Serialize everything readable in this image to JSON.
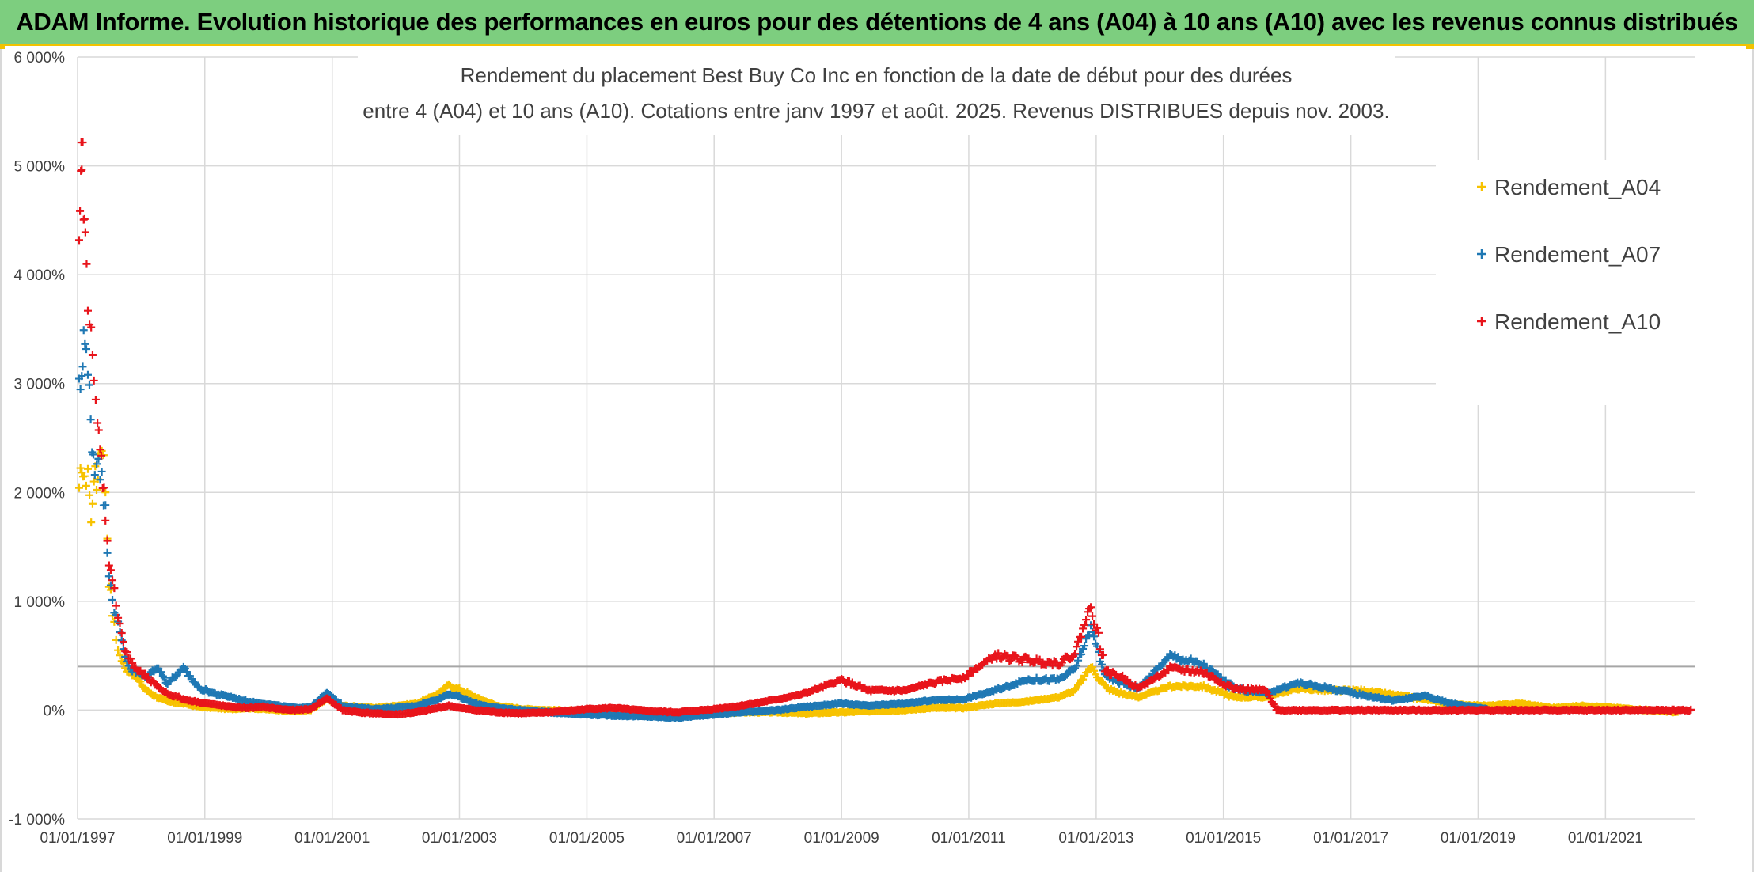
{
  "banner": {
    "title": "ADAM Informe. Evolution historique des performances en euros pour des détentions de 4 ans (A04) à 10 ans (A10) avec les revenus connus distribués"
  },
  "chart_data": {
    "type": "scatter",
    "title_lines": [
      "Rendement du placement Best Buy Co Inc en fonction de la date de début pour des durées",
      "entre 4 (A04) et 10 ans (A10). Cotations entre janv 1997 et août. 2025. Revenus DISTRIBUES depuis nov. 2003."
    ],
    "xlabel": "",
    "ylabel": "",
    "x_tick_labels": [
      "01/01/1997",
      "01/01/1999",
      "01/01/2001",
      "01/01/2003",
      "01/01/2005",
      "01/01/2007",
      "01/01/2009",
      "01/01/2011",
      "01/01/2013",
      "01/01/2015",
      "01/01/2017",
      "01/01/2019",
      "01/01/2021"
    ],
    "y_ticks": [
      -1000,
      0,
      1000,
      2000,
      3000,
      4000,
      5000,
      6000
    ],
    "y_tick_labels": [
      "-1 000%",
      "0%",
      "1 000%",
      "2 000%",
      "3 000%",
      "4 000%",
      "5 000%",
      "6 000%"
    ],
    "xlim": [
      "1997-01-01",
      "2022-06-01"
    ],
    "ylim": [
      -1000,
      6000
    ],
    "reference_line_y": 400,
    "grid": true,
    "legend_position": "top-right",
    "marker": "+",
    "series": [
      {
        "name": "Rendement_A04",
        "color": "#f7c200",
        "points": [
          [
            "1997-01-10",
            1950
          ],
          [
            "1997-01-25",
            2300
          ],
          [
            "1997-02-10",
            2050
          ],
          [
            "1997-03-01",
            2250
          ],
          [
            "1997-03-20",
            1700
          ],
          [
            "1997-04-05",
            2200
          ],
          [
            "1997-04-20",
            2050
          ],
          [
            "1997-05-05",
            2350
          ],
          [
            "1997-05-20",
            2500
          ],
          [
            "1997-06-10",
            2050
          ],
          [
            "1997-07-01",
            1200
          ],
          [
            "1997-07-20",
            900
          ],
          [
            "1997-08-10",
            650
          ],
          [
            "1997-09-01",
            500
          ],
          [
            "1997-10-01",
            380
          ],
          [
            "1997-11-01",
            360
          ],
          [
            "1997-12-01",
            300
          ],
          [
            "1998-02-01",
            180
          ],
          [
            "1998-04-01",
            120
          ],
          [
            "1998-06-01",
            80
          ],
          [
            "1998-09-01",
            60
          ],
          [
            "1998-12-01",
            30
          ],
          [
            "1999-03-01",
            20
          ],
          [
            "1999-06-01",
            10
          ],
          [
            "1999-09-01",
            20
          ],
          [
            "1999-12-01",
            10
          ],
          [
            "2000-03-01",
            0
          ],
          [
            "2000-06-01",
            -10
          ],
          [
            "2000-09-01",
            0
          ],
          [
            "2000-12-01",
            100
          ],
          [
            "2001-03-01",
            40
          ],
          [
            "2001-06-01",
            30
          ],
          [
            "2001-09-01",
            20
          ],
          [
            "2002-01-01",
            40
          ],
          [
            "2002-05-01",
            60
          ],
          [
            "2002-09-01",
            150
          ],
          [
            "2002-11-01",
            230
          ],
          [
            "2003-01-01",
            190
          ],
          [
            "2003-04-01",
            120
          ],
          [
            "2003-08-01",
            40
          ],
          [
            "2004-01-01",
            10
          ],
          [
            "2004-06-01",
            0
          ],
          [
            "2005-01-01",
            -10
          ],
          [
            "2005-06-01",
            -20
          ],
          [
            "2006-01-01",
            -30
          ],
          [
            "2006-06-01",
            -40
          ],
          [
            "2007-01-01",
            -30
          ],
          [
            "2007-06-01",
            -20
          ],
          [
            "2008-01-01",
            -20
          ],
          [
            "2008-06-01",
            -30
          ],
          [
            "2009-01-01",
            -20
          ],
          [
            "2009-06-01",
            -10
          ],
          [
            "2010-01-01",
            0
          ],
          [
            "2010-06-01",
            20
          ],
          [
            "2010-12-01",
            20
          ],
          [
            "2011-06-01",
            60
          ],
          [
            "2011-12-01",
            80
          ],
          [
            "2012-06-01",
            120
          ],
          [
            "2012-09-01",
            180
          ],
          [
            "2012-12-01",
            400
          ],
          [
            "2013-03-01",
            200
          ],
          [
            "2013-06-01",
            150
          ],
          [
            "2013-09-01",
            120
          ],
          [
            "2014-03-01",
            220
          ],
          [
            "2014-09-01",
            220
          ],
          [
            "2015-03-01",
            120
          ],
          [
            "2015-09-01",
            120
          ],
          [
            "2016-03-01",
            200
          ],
          [
            "2016-09-01",
            180
          ],
          [
            "2017-03-01",
            180
          ],
          [
            "2017-09-01",
            140
          ],
          [
            "2018-03-01",
            100
          ],
          [
            "2018-09-01",
            50
          ],
          [
            "2019-03-01",
            40
          ],
          [
            "2019-09-01",
            60
          ],
          [
            "2020-03-01",
            20
          ],
          [
            "2020-09-01",
            40
          ],
          [
            "2021-03-01",
            20
          ],
          [
            "2021-09-01",
            0
          ],
          [
            "2022-03-01",
            -20
          ]
        ]
      },
      {
        "name": "Rendement_A07",
        "color": "#1f78b4",
        "points": [
          [
            "1997-01-10",
            2900
          ],
          [
            "1997-01-25",
            3100
          ],
          [
            "1997-02-05",
            3500
          ],
          [
            "1997-02-20",
            3200
          ],
          [
            "1997-03-10",
            2900
          ],
          [
            "1997-03-25",
            2500
          ],
          [
            "1997-04-10",
            2200
          ],
          [
            "1997-05-01",
            2400
          ],
          [
            "1997-05-20",
            2100
          ],
          [
            "1997-06-10",
            1800
          ],
          [
            "1997-07-01",
            1300
          ],
          [
            "1997-07-20",
            1050
          ],
          [
            "1997-08-10",
            850
          ],
          [
            "1997-09-01",
            700
          ],
          [
            "1997-10-01",
            500
          ],
          [
            "1997-11-01",
            380
          ],
          [
            "1997-12-01",
            350
          ],
          [
            "1998-02-01",
            300
          ],
          [
            "1998-04-01",
            400
          ],
          [
            "1998-06-01",
            250
          ],
          [
            "1998-09-01",
            380
          ],
          [
            "1998-12-01",
            200
          ],
          [
            "1999-03-01",
            150
          ],
          [
            "1999-06-01",
            120
          ],
          [
            "1999-09-01",
            80
          ],
          [
            "1999-12-01",
            60
          ],
          [
            "2000-03-01",
            40
          ],
          [
            "2000-06-01",
            20
          ],
          [
            "2000-09-01",
            30
          ],
          [
            "2000-12-01",
            160
          ],
          [
            "2001-03-01",
            40
          ],
          [
            "2001-06-01",
            20
          ],
          [
            "2001-09-01",
            10
          ],
          [
            "2002-01-01",
            20
          ],
          [
            "2002-05-01",
            40
          ],
          [
            "2002-09-01",
            100
          ],
          [
            "2002-11-01",
            150
          ],
          [
            "2003-01-01",
            120
          ],
          [
            "2003-04-01",
            60
          ],
          [
            "2003-08-01",
            20
          ],
          [
            "2004-01-01",
            0
          ],
          [
            "2004-06-01",
            -20
          ],
          [
            "2005-01-01",
            -40
          ],
          [
            "2005-06-01",
            -50
          ],
          [
            "2006-01-01",
            -60
          ],
          [
            "2006-06-01",
            -70
          ],
          [
            "2007-01-01",
            -40
          ],
          [
            "2007-06-01",
            -20
          ],
          [
            "2008-01-01",
            0
          ],
          [
            "2008-06-01",
            30
          ],
          [
            "2009-01-01",
            60
          ],
          [
            "2009-06-01",
            40
          ],
          [
            "2010-01-01",
            60
          ],
          [
            "2010-06-01",
            90
          ],
          [
            "2010-12-01",
            100
          ],
          [
            "2011-06-01",
            180
          ],
          [
            "2011-12-01",
            280
          ],
          [
            "2012-06-01",
            280
          ],
          [
            "2012-09-01",
            380
          ],
          [
            "2012-12-01",
            750
          ],
          [
            "2013-03-01",
            300
          ],
          [
            "2013-06-01",
            250
          ],
          [
            "2013-09-01",
            200
          ],
          [
            "2014-03-01",
            500
          ],
          [
            "2014-09-01",
            420
          ],
          [
            "2015-03-01",
            200
          ],
          [
            "2015-09-01",
            150
          ],
          [
            "2016-03-01",
            250
          ],
          [
            "2016-09-01",
            200
          ],
          [
            "2017-03-01",
            140
          ],
          [
            "2017-09-01",
            90
          ],
          [
            "2018-03-01",
            130
          ],
          [
            "2018-09-01",
            50
          ],
          [
            "2019-03-01",
            10
          ]
        ]
      },
      {
        "name": "Rendement_A10",
        "color": "#e8141b",
        "points": [
          [
            "1997-01-10",
            4100
          ],
          [
            "1997-01-20",
            4800
          ],
          [
            "1997-01-25",
            5250
          ],
          [
            "1997-02-05",
            4650
          ],
          [
            "1997-02-15",
            4200
          ],
          [
            "1997-03-01",
            3900
          ],
          [
            "1997-03-20",
            3600
          ],
          [
            "1997-04-05",
            2900
          ],
          [
            "1997-04-25",
            2600
          ],
          [
            "1997-05-10",
            2400
          ],
          [
            "1997-05-25",
            2150
          ],
          [
            "1997-06-10",
            1800
          ],
          [
            "1997-07-01",
            1400
          ],
          [
            "1997-07-20",
            1150
          ],
          [
            "1997-08-10",
            1000
          ],
          [
            "1997-09-01",
            800
          ],
          [
            "1997-10-01",
            550
          ],
          [
            "1997-11-01",
            450
          ],
          [
            "1997-12-01",
            380
          ],
          [
            "1998-02-01",
            300
          ],
          [
            "1998-04-01",
            220
          ],
          [
            "1998-06-01",
            150
          ],
          [
            "1998-09-01",
            100
          ],
          [
            "1998-12-01",
            70
          ],
          [
            "1999-03-01",
            50
          ],
          [
            "1999-06-01",
            30
          ],
          [
            "1999-09-01",
            20
          ],
          [
            "1999-12-01",
            30
          ],
          [
            "2000-03-01",
            10
          ],
          [
            "2000-06-01",
            0
          ],
          [
            "2000-09-01",
            10
          ],
          [
            "2000-12-01",
            110
          ],
          [
            "2001-03-01",
            0
          ],
          [
            "2001-06-01",
            -20
          ],
          [
            "2001-09-01",
            -30
          ],
          [
            "2002-01-01",
            -40
          ],
          [
            "2002-05-01",
            -20
          ],
          [
            "2002-09-01",
            20
          ],
          [
            "2002-11-01",
            40
          ],
          [
            "2003-01-01",
            20
          ],
          [
            "2003-04-01",
            0
          ],
          [
            "2003-08-01",
            -20
          ],
          [
            "2004-01-01",
            -30
          ],
          [
            "2004-06-01",
            -20
          ],
          [
            "2005-01-01",
            10
          ],
          [
            "2005-06-01",
            20
          ],
          [
            "2006-01-01",
            -10
          ],
          [
            "2006-06-01",
            -20
          ],
          [
            "2007-01-01",
            10
          ],
          [
            "2007-06-01",
            40
          ],
          [
            "2008-01-01",
            100
          ],
          [
            "2008-06-01",
            150
          ],
          [
            "2009-01-01",
            280
          ],
          [
            "2009-06-01",
            180
          ],
          [
            "2010-01-01",
            180
          ],
          [
            "2010-06-01",
            250
          ],
          [
            "2010-12-01",
            300
          ],
          [
            "2011-06-01",
            500
          ],
          [
            "2011-12-01",
            460
          ],
          [
            "2012-06-01",
            430
          ],
          [
            "2012-09-01",
            520
          ],
          [
            "2012-12-01",
            970
          ],
          [
            "2013-03-01",
            350
          ],
          [
            "2013-06-01",
            300
          ],
          [
            "2013-09-01",
            200
          ],
          [
            "2014-03-01",
            380
          ],
          [
            "2014-09-01",
            350
          ],
          [
            "2015-03-01",
            200
          ],
          [
            "2015-09-01",
            180
          ],
          [
            "2015-11-01",
            0
          ],
          [
            "2016-06-01",
            0
          ],
          [
            "2017-01-01",
            0
          ],
          [
            "2017-06-01",
            0
          ],
          [
            "2018-01-01",
            0
          ],
          [
            "2018-06-01",
            0
          ],
          [
            "2019-01-01",
            0
          ],
          [
            "2019-06-01",
            0
          ],
          [
            "2020-01-01",
            0
          ],
          [
            "2020-06-01",
            0
          ],
          [
            "2021-01-01",
            0
          ],
          [
            "2021-06-01",
            0
          ],
          [
            "2022-01-01",
            0
          ],
          [
            "2022-05-15",
            0
          ]
        ]
      }
    ]
  }
}
